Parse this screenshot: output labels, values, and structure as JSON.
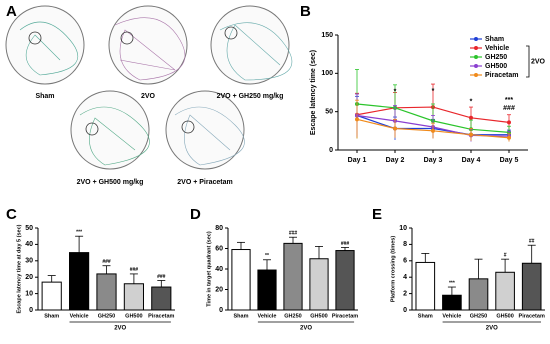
{
  "figure_a": {
    "panel": "A",
    "labels": [
      "Sham",
      "2VO",
      "2VO + GH250 mg/kg",
      "2VO + GH500 mg/kg",
      "2VO + Piracetam"
    ]
  },
  "chart_data": [
    {
      "type": "line",
      "panel": "B",
      "y_label": "Escape latency time (sec)",
      "categories": [
        "Day 1",
        "Day 2",
        "Day 3",
        "Day 4",
        "Day 5"
      ],
      "ylim": [
        0,
        150
      ],
      "yticks": [
        0,
        50,
        100,
        150
      ],
      "legend_group": "2VO",
      "series": [
        {
          "name": "Sham",
          "color": "#1f3fd6",
          "values": [
            45,
            28,
            28,
            20,
            20
          ],
          "errors": [
            25,
            15,
            12,
            8,
            6
          ]
        },
        {
          "name": "Vehicle",
          "color": "#e8262b",
          "values": [
            46,
            55,
            56,
            42,
            36
          ],
          "errors": [
            28,
            20,
            30,
            14,
            10
          ]
        },
        {
          "name": "GH250",
          "color": "#2bc42b",
          "values": [
            60,
            55,
            38,
            27,
            23
          ],
          "errors": [
            45,
            30,
            22,
            12,
            8
          ]
        },
        {
          "name": "GH500",
          "color": "#8a3fd0",
          "values": [
            45,
            38,
            30,
            19,
            18
          ],
          "errors": [
            28,
            20,
            15,
            8,
            6
          ]
        },
        {
          "name": "Piracetam",
          "color": "#f08a1a",
          "values": [
            40,
            28,
            25,
            20,
            16
          ],
          "errors": [
            25,
            12,
            10,
            8,
            5
          ]
        }
      ],
      "sig_vehicle": [
        null,
        "*",
        "*",
        "*",
        "***"
      ],
      "sig_treated": [
        null,
        null,
        null,
        null,
        "###"
      ]
    },
    {
      "type": "bar",
      "panel": "C",
      "y_label": "Escape latency time at day 5 (sec)",
      "categories": [
        "Sham",
        "Vehicle",
        "GH250",
        "GH500",
        "Piracetam"
      ],
      "group_label": "2VO",
      "values": [
        17,
        35,
        22,
        16,
        14
      ],
      "errors": [
        4,
        10,
        5,
        6,
        4
      ],
      "colors": [
        "#ffffff",
        "#000000",
        "#8a8a8a",
        "#d0d0d0",
        "#555555"
      ],
      "significance": [
        null,
        "***",
        "###",
        "###",
        "###"
      ],
      "ylim": [
        0,
        50
      ],
      "yticks": [
        0,
        10,
        20,
        30,
        40,
        50
      ]
    },
    {
      "type": "bar",
      "panel": "D",
      "y_label": "Time in target quadrant (sec)",
      "categories": [
        "Sham",
        "Vehicle",
        "GH250",
        "GH500",
        "Piracetam"
      ],
      "group_label": "2VO",
      "values": [
        59,
        39,
        65,
        50,
        58
      ],
      "errors": [
        7,
        10,
        6,
        12,
        3
      ],
      "colors": [
        "#ffffff",
        "#000000",
        "#8a8a8a",
        "#d0d0d0",
        "#555555"
      ],
      "significance": [
        null,
        "**",
        "###",
        null,
        "###"
      ],
      "ylim": [
        0,
        80
      ],
      "yticks": [
        0,
        20,
        40,
        60,
        80
      ]
    },
    {
      "type": "bar",
      "panel": "E",
      "y_label": "Platform crossing (times)",
      "categories": [
        "Sham",
        "Vehicle",
        "GH250",
        "GH500",
        "Piracetam"
      ],
      "group_label": "2VO",
      "values": [
        5.8,
        1.8,
        3.8,
        4.6,
        5.7
      ],
      "errors": [
        1.1,
        1.0,
        2.4,
        1.6,
        2.2
      ],
      "colors": [
        "#ffffff",
        "#000000",
        "#8a8a8a",
        "#d0d0d0",
        "#555555"
      ],
      "significance": [
        null,
        "***",
        null,
        "#",
        "##"
      ],
      "ylim": [
        0,
        10
      ],
      "yticks": [
        0,
        2,
        4,
        6,
        8,
        10
      ]
    }
  ]
}
